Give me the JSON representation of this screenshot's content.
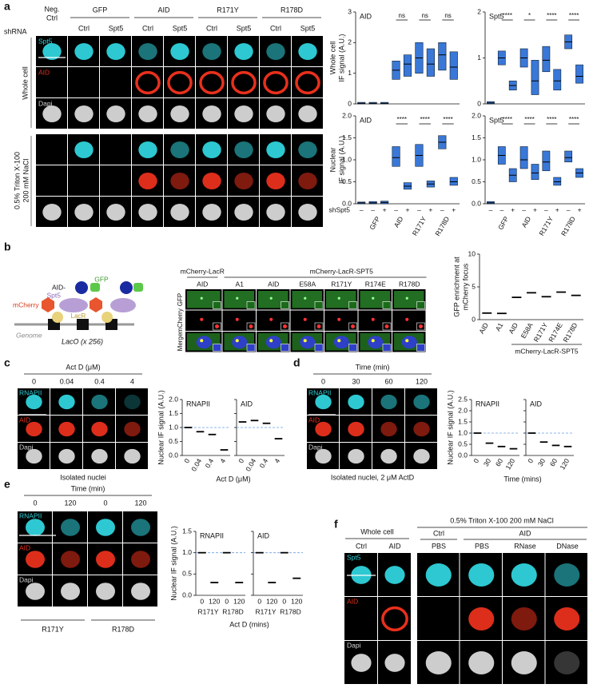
{
  "a": {
    "letter": "a",
    "shrna_label": "shRNA",
    "neg_ctrl": [
      "Neg.",
      "Ctrl"
    ],
    "columns": [
      "GFP",
      "AID",
      "R171Y",
      "R178D"
    ],
    "subcolumns": [
      "Ctrl",
      "Spt5"
    ],
    "whole_cell": "Whole cell",
    "triton": [
      "0.5% Triton X-100",
      "200 mM NaCl"
    ],
    "channels": [
      "Spt5",
      "AID",
      "Dapi"
    ],
    "shspt5_label": "shSpt5",
    "charts": [
      {
        "type": "box",
        "title": "AID",
        "ylabel": [
          "Whole cell",
          "IF signal (A.U.)"
        ],
        "median": [
          0.02,
          0.02,
          0.02,
          1.1,
          1.3,
          1.5,
          1.3,
          1.6,
          1.2
        ],
        "q1": [
          0,
          0,
          0,
          0.8,
          0.9,
          1.0,
          0.9,
          1.1,
          0.8
        ],
        "q3": [
          0.05,
          0.05,
          0.05,
          1.4,
          1.6,
          2.0,
          1.8,
          2.0,
          1.7
        ],
        "ylim": [
          0,
          3
        ],
        "yticks": [
          0,
          1,
          2,
          3
        ],
        "annotations": [
          "ns",
          "ns",
          "ns"
        ],
        "color": "#3a78d8"
      },
      {
        "type": "box",
        "title": "Spt5",
        "median": [
          0.02,
          1.0,
          0.4,
          1.0,
          0.5,
          0.95,
          0.5,
          1.35,
          0.6
        ],
        "q1": [
          0,
          0.85,
          0.3,
          0.8,
          0.2,
          0.7,
          0.3,
          1.2,
          0.45
        ],
        "q3": [
          0.05,
          1.15,
          0.5,
          1.2,
          0.95,
          1.25,
          0.75,
          1.5,
          0.85
        ],
        "ylim": [
          0,
          2
        ],
        "yticks": [
          0,
          1,
          2
        ],
        "annotations": [
          "****",
          "*",
          "****",
          "****"
        ],
        "color": "#3a78d8"
      },
      {
        "type": "box",
        "title": "AID",
        "ylabel": [
          "Nuclear",
          "IF signal (A.U.)"
        ],
        "categories": [
          "–",
          "–",
          "+",
          "–",
          "+",
          "–",
          "+",
          "–",
          "+"
        ],
        "groups": [
          "GFP",
          "AID",
          "R171Y",
          "R178D"
        ],
        "median": [
          0.02,
          0.02,
          0.03,
          1.05,
          0.4,
          1.1,
          0.45,
          1.4,
          0.5
        ],
        "q1": [
          0,
          0,
          0,
          0.85,
          0.33,
          0.85,
          0.38,
          1.25,
          0.42
        ],
        "q3": [
          0.04,
          0.05,
          0.06,
          1.3,
          0.48,
          1.35,
          0.52,
          1.55,
          0.6
        ],
        "ylim": [
          0,
          2
        ],
        "yticks": [
          {
            "value": 0,
            "label": "0.0"
          },
          {
            "value": 0.5,
            "label": "0.5"
          },
          {
            "value": 1,
            "label": "1.0"
          },
          {
            "value": 1.5,
            "label": "1.5"
          },
          {
            "value": 2,
            "label": "2.0"
          }
        ],
        "annotations": [
          "****",
          "****",
          "****"
        ],
        "color": "#3a78d8"
      },
      {
        "type": "box",
        "title": "Spt5",
        "categories": [
          "–",
          "–",
          "+",
          "–",
          "+",
          "–",
          "+",
          "–",
          "+"
        ],
        "groups": [
          "GFP",
          "AID",
          "R171Y",
          "R178D"
        ],
        "median": [
          0.02,
          1.1,
          0.65,
          1.0,
          0.7,
          0.95,
          0.5,
          1.05,
          0.7
        ],
        "q1": [
          0,
          0.9,
          0.5,
          0.8,
          0.55,
          0.75,
          0.42,
          0.95,
          0.6
        ],
        "q3": [
          0.05,
          1.3,
          0.8,
          1.3,
          0.9,
          1.2,
          0.6,
          1.2,
          0.8
        ],
        "ylim": [
          0,
          2
        ],
        "yticks": [
          {
            "value": 0,
            "label": "0.0"
          },
          {
            "value": 0.5,
            "label": "0.5"
          },
          {
            "value": 1,
            "label": "1.0"
          },
          {
            "value": 1.5,
            "label": "1.5"
          },
          {
            "value": 2,
            "label": "2.0"
          }
        ],
        "annotations": [
          "****",
          "****",
          "****",
          "****"
        ],
        "color": "#3a78d8"
      }
    ]
  },
  "b": {
    "letter": "b",
    "schematic": {
      "aid": "AID-",
      "gfp": "GFP",
      "spt5": "Spt5",
      "mcherry": "mCherry",
      "lacr": "LacR",
      "genome": "Genome",
      "laco": "LacO (x 256)"
    },
    "group_lacr": "mCherry-LacR",
    "group_spt5": "mCherry-LacR-SPT5",
    "columns": [
      "AID",
      "A1",
      "AID",
      "E58A",
      "R171Y",
      "R174E",
      "R178D"
    ],
    "rows": [
      "GFP",
      "mCherry",
      "Merge"
    ],
    "chart": {
      "type": "dot",
      "ylabel": [
        "GFP enrichment at",
        "mCherry focus"
      ],
      "categories": [
        "AID",
        "A1",
        "AID",
        "E58A",
        "R171Y",
        "R174E",
        "R178D"
      ],
      "values": [
        1.0,
        0.95,
        3.4,
        4.1,
        3.5,
        4.2,
        3.7
      ],
      "ylim": [
        0,
        10
      ],
      "yticks": [
        0,
        5,
        10
      ],
      "xlabel": "mCherry-LacR-SPT5",
      "color": "#3a78d8"
    }
  },
  "c": {
    "letter": "c",
    "header": "Act D (μM)",
    "columns": [
      "0",
      "0.04",
      "0.4",
      "4"
    ],
    "channels": [
      "RNAPII",
      "AID",
      "Dapi"
    ],
    "caption": "Isolated nuclei",
    "ylabel": "Nuclear IF signal (A.U.)",
    "xlabel": "Act D (μM)",
    "charts": [
      {
        "type": "dot",
        "title": "RNAPII",
        "categories": [
          "0",
          "0.04",
          "0.4",
          "4"
        ],
        "values": [
          1.0,
          0.85,
          0.75,
          0.2
        ],
        "ylim": [
          0,
          2
        ],
        "yticks": [
          {
            "value": 0,
            "label": "0.0"
          },
          {
            "value": 0.5,
            "label": "0.5"
          },
          {
            "value": 1,
            "label": "1.0"
          },
          {
            "value": 1.5,
            "label": "1.5"
          },
          {
            "value": 2,
            "label": "2.0"
          }
        ],
        "refline": 1,
        "color": "#3a78d8"
      },
      {
        "type": "dot",
        "title": "AID",
        "categories": [
          "0",
          "0.04",
          "0.4",
          "4"
        ],
        "values": [
          1.2,
          1.25,
          1.15,
          0.6
        ],
        "ylim": [
          0,
          2
        ],
        "yticks": [
          0,
          0.5,
          1,
          1.5,
          2
        ],
        "refline": 1,
        "color": "#3a78d8"
      }
    ]
  },
  "d": {
    "letter": "d",
    "header": "Time (min)",
    "columns": [
      "0",
      "30",
      "60",
      "120"
    ],
    "channels": [
      "RNAPII",
      "AID",
      "Dapi"
    ],
    "caption": "Isolated nuclei, 2 μM ActD",
    "ylabel": "Nuclear IF signal (A.U.)",
    "xlabel": "Time (mins)",
    "charts": [
      {
        "type": "dot",
        "title": "RNAPII",
        "categories": [
          "0",
          "30",
          "60",
          "120"
        ],
        "values": [
          1.0,
          0.55,
          0.4,
          0.3
        ],
        "ylim": [
          0,
          2.5
        ],
        "yticks": [
          {
            "value": 0,
            "label": "0.0"
          },
          {
            "value": 0.5,
            "label": "0.5"
          },
          {
            "value": 1,
            "label": "1.0"
          },
          {
            "value": 1.5,
            "label": "1.5"
          },
          {
            "value": 2,
            "label": "2.0"
          },
          {
            "value": 2.5,
            "label": "2.5"
          }
        ],
        "refline": 1,
        "color": "#3a78d8"
      },
      {
        "type": "dot",
        "title": "AID",
        "categories": [
          "0",
          "30",
          "60",
          "120"
        ],
        "values": [
          1.0,
          0.6,
          0.45,
          0.4
        ],
        "ylim": [
          0,
          2.5
        ],
        "yticks": [
          0,
          0.5,
          1,
          1.5,
          2,
          2.5
        ],
        "refline": 1,
        "color": "#3a78d8"
      }
    ]
  },
  "e": {
    "letter": "e",
    "header": "Time (min)",
    "columns": [
      "0",
      "120",
      "0",
      "120"
    ],
    "channels": [
      "RNAPII",
      "AID",
      "Dapi"
    ],
    "groups": [
      "R171Y",
      "R178D"
    ],
    "ylabel": "Nuclear IF signal (A.U.)",
    "xlabel": "Act D (mins)",
    "charts": [
      {
        "type": "dot",
        "title": "RNAPII",
        "categories": [
          "0",
          "120",
          "0",
          "120"
        ],
        "groups": [
          "R171Y",
          "R178D"
        ],
        "values": [
          1.0,
          0.3,
          1.0,
          0.3
        ],
        "ylim": [
          0,
          1.5
        ],
        "yticks": [
          {
            "value": 0,
            "label": "0.0"
          },
          {
            "value": 0.5,
            "label": "0.5"
          },
          {
            "value": 1,
            "label": "1.0"
          },
          {
            "value": 1.5,
            "label": "1.5"
          }
        ],
        "refline": 1,
        "color": "#3a78d8"
      },
      {
        "type": "dot",
        "title": "AID",
        "categories": [
          "0",
          "120",
          "0",
          "120"
        ],
        "groups": [
          "R171Y",
          "R178D"
        ],
        "values": [
          1.0,
          0.3,
          1.0,
          0.4
        ],
        "ylim": [
          0,
          1.5
        ],
        "yticks": [
          0,
          0.5,
          1,
          1.5
        ],
        "refline": 1,
        "color": "#3a78d8"
      }
    ]
  },
  "f": {
    "letter": "f",
    "whole_cell": "Whole cell",
    "triton": "0.5% Triton X-100 200 mM NaCl",
    "whole_columns": [
      "Ctrl",
      "AID"
    ],
    "triton_groups": [
      "Ctrl",
      "AID"
    ],
    "triton_columns": [
      "PBS",
      "PBS",
      "RNase",
      "DNase"
    ],
    "channels": [
      "Spt5",
      "AID",
      "Dapi"
    ]
  }
}
